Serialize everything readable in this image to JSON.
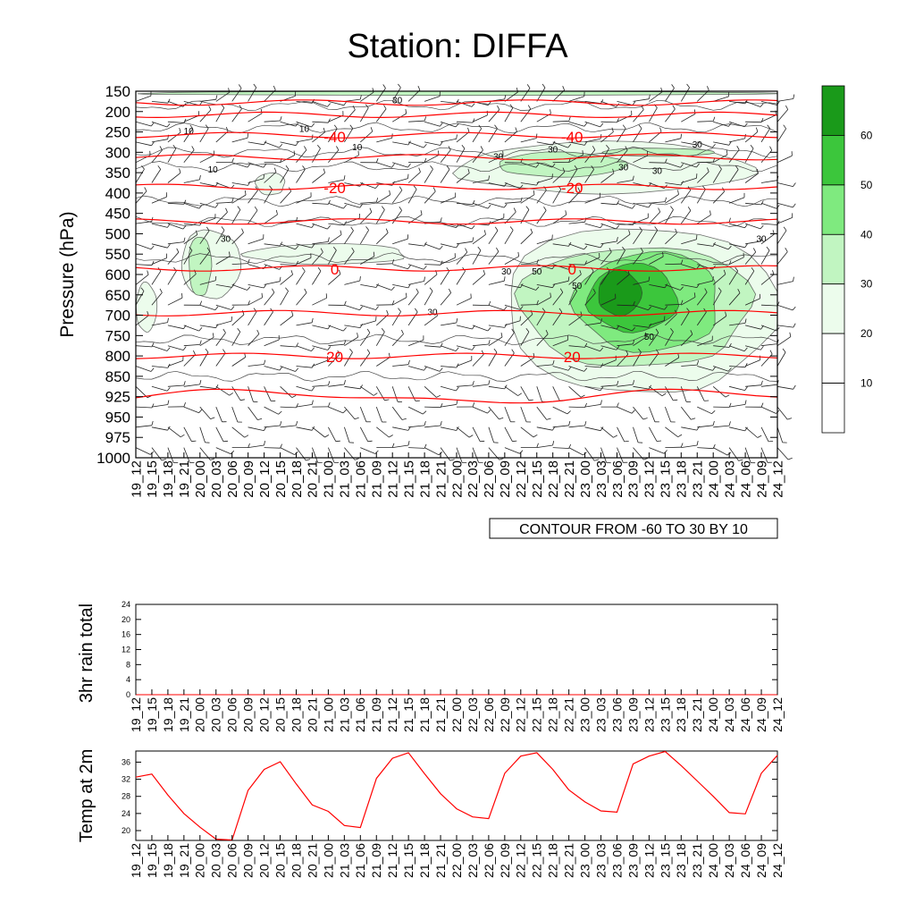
{
  "title": "Station: DIFFA",
  "times": [
    "19_12",
    "19_15",
    "19_18",
    "19_21",
    "20_00",
    "20_03",
    "20_06",
    "20_09",
    "20_12",
    "20_15",
    "20_18",
    "20_21",
    "21_00",
    "21_03",
    "21_06",
    "21_09",
    "21_12",
    "21_15",
    "21_18",
    "21_21",
    "22_00",
    "22_03",
    "22_06",
    "22_09",
    "22_12",
    "22_15",
    "22_18",
    "22_21",
    "23_00",
    "23_03",
    "23_06",
    "23_09",
    "23_12",
    "23_15",
    "23_18",
    "23_21",
    "24_00",
    "24_03",
    "24_06",
    "24_09",
    "24_12"
  ],
  "contour_info": "CONTOUR FROM -60 TO 30 BY 10",
  "colors": {
    "temperature_line": "#ff0000",
    "fill_levels": [
      "#ffffff",
      "#ffffff",
      "#ecfcec",
      "#c1f5c1",
      "#7fea7f",
      "#3cc63c",
      "#1a9a1a"
    ]
  },
  "chart_data": [
    {
      "type": "heatmap",
      "description_of_fields": "Relative humidity shaded (green), temperature contours (red, labelled), wind barbs",
      "ylabel": "Pressure (hPa)",
      "y_ticks": [
        150,
        200,
        250,
        300,
        350,
        400,
        450,
        500,
        550,
        600,
        650,
        700,
        750,
        800,
        850,
        925,
        950,
        975,
        1000
      ],
      "x_ticks": "times",
      "colorbar": {
        "levels": [
          10,
          20,
          30,
          40,
          50,
          60
        ],
        "labels": [
          "10",
          "20",
          "30",
          "40",
          "50",
          "60"
        ]
      },
      "temperature_contours": [
        {
          "value": -40,
          "label": "-40",
          "level_hpa": 260
        },
        {
          "value": -20,
          "label": "-20",
          "level_hpa": 385
        },
        {
          "value": 0,
          "label": "0",
          "level_hpa": 585
        },
        {
          "value": 20,
          "label": "20",
          "level_hpa": 800
        }
      ],
      "humidity_labels": [
        "10",
        "10",
        "10",
        "10",
        "30",
        "30",
        "30",
        "30",
        "30",
        "30",
        "30",
        "30",
        "30",
        "30",
        "50",
        "50",
        "50"
      ],
      "humidity_regions": [
        {
          "level": 30,
          "t0": 0,
          "t1": 40,
          "p0": 150,
          "p1": 160
        },
        {
          "level": 20,
          "t0": 0,
          "t1": 1.3,
          "p0": 620,
          "p1": 740
        },
        {
          "level": 20,
          "t0": 2.8,
          "t1": 6.5,
          "p0": 490,
          "p1": 660
        },
        {
          "level": 30,
          "t0": 3.3,
          "t1": 4.7,
          "p0": 505,
          "p1": 655
        },
        {
          "level": 20,
          "t0": 7.5,
          "t1": 9.3,
          "p0": 350,
          "p1": 405
        },
        {
          "level": 20,
          "t0": 7.0,
          "t1": 17.0,
          "p0": 525,
          "p1": 575
        },
        {
          "level": 20,
          "t0": 20.0,
          "t1": 38.5,
          "p0": 275,
          "p1": 400
        },
        {
          "level": 30,
          "t0": 22.5,
          "t1": 30.5,
          "p0": 300,
          "p1": 360
        },
        {
          "level": 30,
          "t0": 29.0,
          "t1": 36.0,
          "p0": 290,
          "p1": 310
        },
        {
          "level": 20,
          "t0": 23.0,
          "t1": 40.0,
          "p0": 480,
          "p1": 920
        },
        {
          "level": 30,
          "t0": 24.0,
          "t1": 38.5,
          "p0": 530,
          "p1": 830
        },
        {
          "level": 40,
          "t0": 27.5,
          "t1": 36.5,
          "p0": 545,
          "p1": 790
        },
        {
          "level": 50,
          "t0": 28.2,
          "t1": 33.8,
          "p0": 575,
          "p1": 740
        },
        {
          "level": 60,
          "t0": 28.8,
          "t1": 31.5,
          "p0": 590,
          "p1": 700
        }
      ]
    },
    {
      "type": "line",
      "ylabel": "3hr rain total",
      "x": "times",
      "y_ticks": [
        0,
        4,
        8,
        12,
        16,
        20,
        24
      ],
      "ylim": [
        0,
        24
      ],
      "values": [
        0,
        0,
        0,
        0,
        0,
        0,
        0,
        0,
        0,
        0,
        0,
        0,
        0,
        0,
        0,
        0,
        0,
        0,
        0,
        0,
        0,
        0,
        0,
        0,
        0,
        0,
        0,
        0,
        0,
        0,
        0,
        0,
        0,
        0,
        0,
        0,
        0,
        0,
        0,
        0,
        0
      ]
    },
    {
      "type": "line",
      "ylabel": "Temp at 2m",
      "x": "times",
      "y_ticks": [
        20,
        24,
        28,
        32,
        36
      ],
      "ylim": [
        17.7,
        38.6
      ],
      "values": [
        32.5,
        33.2,
        28.3,
        24.0,
        20.8,
        18.0,
        17.8,
        29.4,
        34.3,
        36.1,
        30.9,
        26.0,
        24.5,
        21.2,
        20.7,
        32.2,
        36.9,
        38.2,
        33.3,
        28.6,
        25.1,
        23.2,
        22.8,
        33.4,
        37.4,
        38.2,
        34.3,
        29.5,
        26.7,
        24.6,
        24.3,
        35.6,
        37.4,
        38.5,
        35.2,
        31.6,
        28.0,
        24.2,
        23.9,
        33.4,
        37.6
      ]
    }
  ]
}
